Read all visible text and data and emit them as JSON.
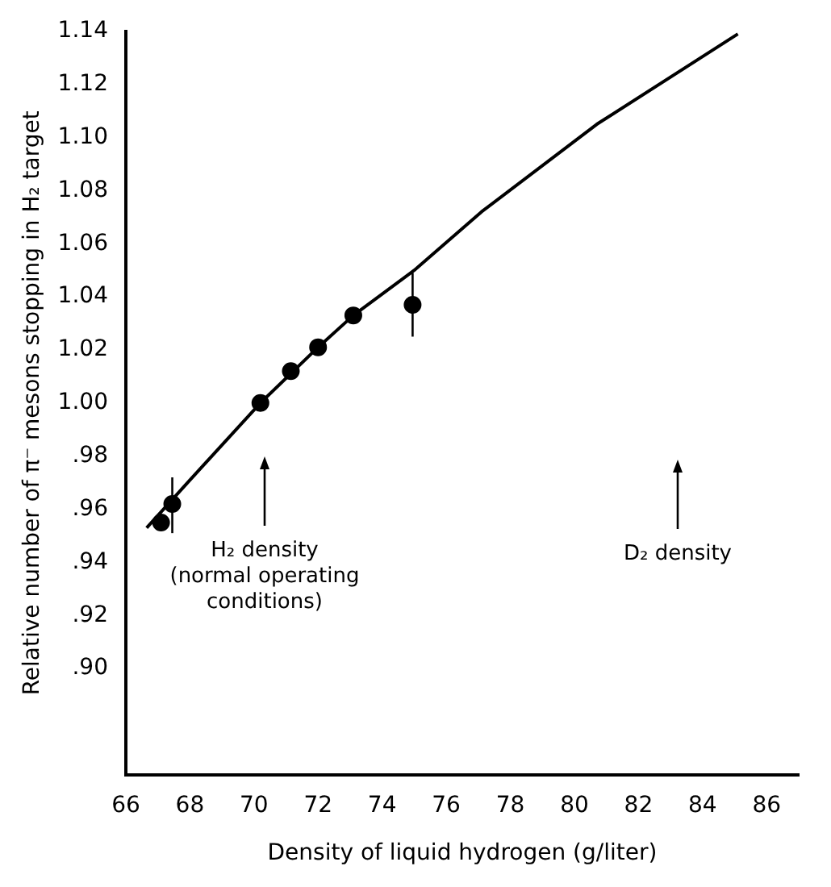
{
  "chart_data": {
    "type": "scatter",
    "xlabel": "Density of liquid hydrogen (g/liter)",
    "ylabel": "Relative number of π⁻ mesons stopping in H₂ target",
    "xlim": [
      66,
      87
    ],
    "xticks": [
      66,
      68,
      70,
      72,
      74,
      76,
      78,
      80,
      82,
      84,
      86
    ],
    "ylim": [
      0.86,
      1.14
    ],
    "yticks": [
      {
        "value": 0.9,
        "label": ".90"
      },
      {
        "value": 0.92,
        "label": ".92"
      },
      {
        "value": 0.94,
        "label": ".94"
      },
      {
        "value": 0.96,
        "label": ".96"
      },
      {
        "value": 0.98,
        "label": ".98"
      },
      {
        "value": 1.0,
        "label": "1.00"
      },
      {
        "value": 1.02,
        "label": "1.02"
      },
      {
        "value": 1.04,
        "label": "1.04"
      },
      {
        "value": 1.06,
        "label": "1.06"
      },
      {
        "value": 1.08,
        "label": "1.08"
      },
      {
        "value": 1.1,
        "label": "1.10"
      },
      {
        "value": 1.12,
        "label": "1.12"
      },
      {
        "value": 1.14,
        "label": "1.14"
      }
    ],
    "grid": false,
    "marker": "circle",
    "series": [
      {
        "color": "#000000",
        "x": [
          67.1,
          67.45,
          70.2,
          71.15,
          72.0,
          73.1,
          74.95
        ],
        "values": [
          0.955,
          0.962,
          1.0,
          1.012,
          1.021,
          1.033,
          1.037
        ],
        "errors": [
          null,
          [
            0.951,
            0.972
          ],
          null,
          null,
          null,
          null,
          [
            1.025,
            1.049
          ]
        ]
      },
      {
        "type": "line",
        "color": "#000000",
        "marker": "none",
        "x": [
          66.65,
          68,
          70.2,
          72,
          73.1,
          75,
          77.1,
          80.7,
          85.1
        ],
        "values": [
          0.953,
          0.971,
          1.0,
          1.021,
          1.033,
          1.05,
          1.072,
          1.105,
          1.139
        ]
      }
    ],
    "annotations": [
      "H₂ density\n(normal operating\nconditions)",
      "D₂ density"
    ]
  }
}
